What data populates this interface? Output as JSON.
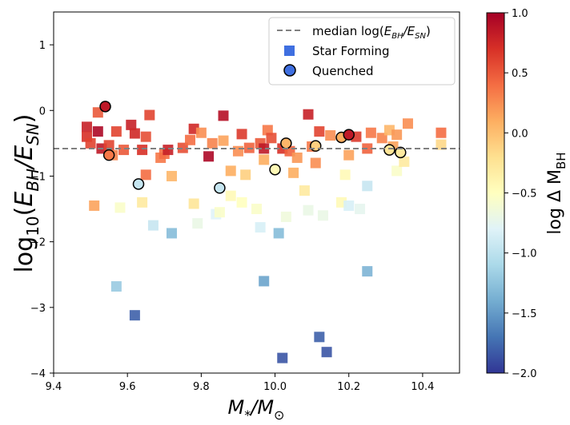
{
  "chart_data": {
    "type": "scatter",
    "xlabel": "M*/M⊙",
    "ylabel": "log10(EBH/ESN)",
    "xlim": [
      9.4,
      10.5
    ],
    "ylim": [
      -4.0,
      1.5
    ],
    "xticks": [
      "9.4",
      "9.6",
      "9.8",
      "10.0",
      "10.2",
      "10.4"
    ],
    "yticks": [
      "−4",
      "−3",
      "−2",
      "−1",
      "0",
      "1"
    ],
    "xtick_values": [
      9.4,
      9.6,
      9.8,
      10.0,
      10.2,
      10.4
    ],
    "ytick_values": [
      -4,
      -3,
      -2,
      -1,
      0,
      1
    ],
    "median_line": {
      "y": -0.58,
      "style": "dashed",
      "color": "#808080",
      "label": "median log(EBH/ESN)"
    },
    "legend": {
      "placement": "top-right",
      "entries": [
        {
          "label": "median log(EBH/ESN)",
          "marker": "dashed-line"
        },
        {
          "label": "Star Forming",
          "marker": "square",
          "color": "#3f6fe0"
        },
        {
          "label": "Quenched",
          "marker": "circle",
          "color": "#3f6fe0"
        }
      ]
    },
    "colorbar": {
      "label": "log Δ MBH",
      "min": -2.0,
      "max": 1.0,
      "ticks": [
        "1.0",
        "0.5",
        "0.0",
        "−0.5",
        "−1.0",
        "−1.5",
        "−2.0"
      ],
      "tick_values": [
        1.0,
        0.5,
        0.0,
        -0.5,
        -1.0,
        -1.5,
        -2.0
      ],
      "colormap": "RdYlBu_r"
    },
    "series": [
      {
        "name": "Star Forming",
        "marker": "square",
        "points": [
          {
            "x": 9.49,
            "y": -0.25,
            "c": 0.8
          },
          {
            "x": 9.49,
            "y": -0.4,
            "c": 0.7
          },
          {
            "x": 9.5,
            "y": -0.5,
            "c": 0.6
          },
          {
            "x": 9.52,
            "y": -0.03,
            "c": 0.5
          },
          {
            "x": 9.52,
            "y": -0.32,
            "c": 0.95
          },
          {
            "x": 9.53,
            "y": -0.58,
            "c": 0.85
          },
          {
            "x": 9.55,
            "y": -0.53,
            "c": 0.6
          },
          {
            "x": 9.56,
            "y": -0.68,
            "c": 0.3
          },
          {
            "x": 9.57,
            "y": -0.32,
            "c": 0.6
          },
          {
            "x": 9.59,
            "y": -0.6,
            "c": 0.5
          },
          {
            "x": 9.61,
            "y": -0.22,
            "c": 0.8
          },
          {
            "x": 9.62,
            "y": -0.35,
            "c": 0.75
          },
          {
            "x": 9.64,
            "y": -0.6,
            "c": 0.7
          },
          {
            "x": 9.65,
            "y": -0.4,
            "c": 0.55
          },
          {
            "x": 9.65,
            "y": -0.98,
            "c": 0.4
          },
          {
            "x": 9.66,
            "y": -0.07,
            "c": 0.6
          },
          {
            "x": 9.69,
            "y": -0.72,
            "c": 0.35
          },
          {
            "x": 9.7,
            "y": -0.66,
            "c": 0.4
          },
          {
            "x": 9.71,
            "y": -0.6,
            "c": 0.8
          },
          {
            "x": 9.72,
            "y": -1.0,
            "c": 0.05
          },
          {
            "x": 9.75,
            "y": -0.57,
            "c": 0.55
          },
          {
            "x": 9.77,
            "y": -0.45,
            "c": 0.4
          },
          {
            "x": 9.78,
            "y": -0.28,
            "c": 0.75
          },
          {
            "x": 9.8,
            "y": -0.34,
            "c": 0.25
          },
          {
            "x": 9.82,
            "y": -0.7,
            "c": 0.95
          },
          {
            "x": 9.83,
            "y": -0.5,
            "c": 0.3
          },
          {
            "x": 9.86,
            "y": -0.08,
            "c": 0.9
          },
          {
            "x": 9.86,
            "y": -0.46,
            "c": 0.15
          },
          {
            "x": 9.88,
            "y": -0.92,
            "c": 0.1
          },
          {
            "x": 9.9,
            "y": -0.62,
            "c": 0.25
          },
          {
            "x": 9.91,
            "y": -0.36,
            "c": 0.65
          },
          {
            "x": 9.92,
            "y": -0.98,
            "c": -0.1
          },
          {
            "x": 9.93,
            "y": -0.57,
            "c": 0.45
          },
          {
            "x": 9.96,
            "y": -0.5,
            "c": 0.5
          },
          {
            "x": 9.97,
            "y": -0.58,
            "c": 0.85
          },
          {
            "x": 9.97,
            "y": -0.75,
            "c": 0.1
          },
          {
            "x": 9.98,
            "y": -0.3,
            "c": 0.35
          },
          {
            "x": 9.99,
            "y": -0.42,
            "c": 0.55
          },
          {
            "x": 10.02,
            "y": -0.58,
            "c": 0.7
          },
          {
            "x": 10.04,
            "y": -0.62,
            "c": 0.45
          },
          {
            "x": 10.05,
            "y": -0.95,
            "c": 0.1
          },
          {
            "x": 10.06,
            "y": -0.72,
            "c": 0.2
          },
          {
            "x": 10.09,
            "y": -0.06,
            "c": 0.8
          },
          {
            "x": 10.1,
            "y": -0.55,
            "c": 0.35
          },
          {
            "x": 10.11,
            "y": -0.8,
            "c": 0.25
          },
          {
            "x": 10.12,
            "y": -0.32,
            "c": 0.6
          },
          {
            "x": 10.15,
            "y": -0.38,
            "c": 0.25
          },
          {
            "x": 10.2,
            "y": -0.68,
            "c": 0.15
          },
          {
            "x": 10.22,
            "y": -0.4,
            "c": 0.65
          },
          {
            "x": 10.25,
            "y": -0.58,
            "c": 0.45
          },
          {
            "x": 10.26,
            "y": -0.34,
            "c": 0.35
          },
          {
            "x": 10.29,
            "y": -0.42,
            "c": 0.3
          },
          {
            "x": 10.31,
            "y": -0.3,
            "c": 0.05
          },
          {
            "x": 10.32,
            "y": -0.55,
            "c": 0.15
          },
          {
            "x": 10.33,
            "y": -0.37,
            "c": 0.2
          },
          {
            "x": 10.36,
            "y": -0.2,
            "c": 0.25
          },
          {
            "x": 10.45,
            "y": -0.34,
            "c": 0.4
          },
          {
            "x": 10.45,
            "y": -0.52,
            "c": -0.15
          },
          {
            "x": 9.51,
            "y": -1.45,
            "c": 0.15
          },
          {
            "x": 9.58,
            "y": -1.48,
            "c": -0.55
          },
          {
            "x": 9.64,
            "y": -1.4,
            "c": -0.3
          },
          {
            "x": 9.67,
            "y": -1.75,
            "c": -0.95
          },
          {
            "x": 9.78,
            "y": -1.42,
            "c": -0.25
          },
          {
            "x": 9.79,
            "y": -1.72,
            "c": -0.7
          },
          {
            "x": 9.84,
            "y": -1.58,
            "c": -0.8
          },
          {
            "x": 9.85,
            "y": -1.55,
            "c": -0.55
          },
          {
            "x": 9.88,
            "y": -1.3,
            "c": -0.45
          },
          {
            "x": 9.91,
            "y": -1.4,
            "c": -0.5
          },
          {
            "x": 9.95,
            "y": -1.5,
            "c": -0.55
          },
          {
            "x": 9.96,
            "y": -1.78,
            "c": -0.85
          },
          {
            "x": 10.03,
            "y": -1.62,
            "c": -0.65
          },
          {
            "x": 10.08,
            "y": -1.22,
            "c": -0.3
          },
          {
            "x": 10.09,
            "y": -1.52,
            "c": -0.7
          },
          {
            "x": 10.13,
            "y": -1.6,
            "c": -0.7
          },
          {
            "x": 10.18,
            "y": -1.4,
            "c": -0.45
          },
          {
            "x": 10.19,
            "y": -0.98,
            "c": -0.45
          },
          {
            "x": 10.2,
            "y": -1.45,
            "c": -0.85
          },
          {
            "x": 10.23,
            "y": -1.5,
            "c": -0.75
          },
          {
            "x": 10.25,
            "y": -1.15,
            "c": -0.95
          },
          {
            "x": 10.33,
            "y": -0.92,
            "c": -0.55
          },
          {
            "x": 10.35,
            "y": -0.78,
            "c": -0.3
          },
          {
            "x": 9.72,
            "y": -1.87,
            "c": -1.3
          },
          {
            "x": 10.01,
            "y": -1.87,
            "c": -1.3
          },
          {
            "x": 9.57,
            "y": -2.68,
            "c": -1.2
          },
          {
            "x": 9.97,
            "y": -2.6,
            "c": -1.45
          },
          {
            "x": 10.25,
            "y": -2.45,
            "c": -1.35
          },
          {
            "x": 9.62,
            "y": -3.12,
            "c": -1.8
          },
          {
            "x": 10.12,
            "y": -3.45,
            "c": -1.8
          },
          {
            "x": 10.02,
            "y": -3.77,
            "c": -1.85
          },
          {
            "x": 10.14,
            "y": -3.68,
            "c": -1.85
          }
        ]
      },
      {
        "name": "Quenched",
        "marker": "circle",
        "points": [
          {
            "x": 9.54,
            "y": 0.06,
            "c": 0.85
          },
          {
            "x": 9.55,
            "y": -0.68,
            "c": 0.35
          },
          {
            "x": 9.63,
            "y": -1.12,
            "c": -0.95
          },
          {
            "x": 9.85,
            "y": -1.18,
            "c": -0.95
          },
          {
            "x": 10.0,
            "y": -0.9,
            "c": -0.45
          },
          {
            "x": 10.03,
            "y": -0.5,
            "c": 0.05
          },
          {
            "x": 10.11,
            "y": -0.54,
            "c": -0.1
          },
          {
            "x": 10.18,
            "y": -0.41,
            "c": 0.1
          },
          {
            "x": 10.2,
            "y": -0.37,
            "c": 0.85
          },
          {
            "x": 10.31,
            "y": -0.6,
            "c": -0.25
          },
          {
            "x": 10.34,
            "y": -0.64,
            "c": -0.3
          }
        ]
      }
    ]
  }
}
